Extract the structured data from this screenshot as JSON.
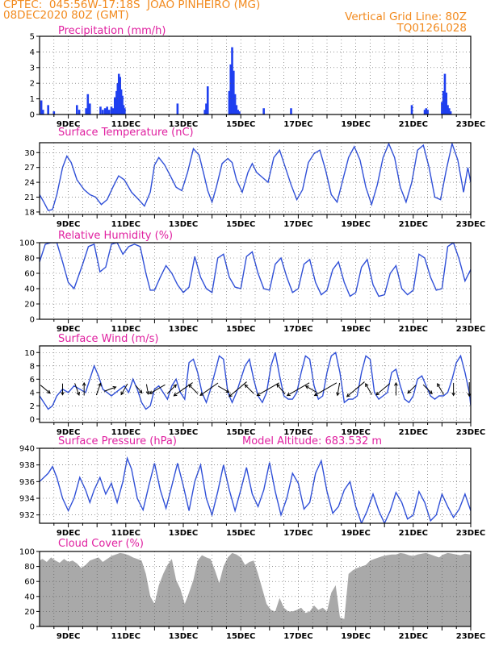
{
  "header": {
    "line1_left": "CPTEC:  045:56W-17:18S  JOAO PINHEIRO (MG)",
    "line2_left": "08DEC2020 80Z (GMT)",
    "line2_right": "Vertical Grid Line: 80Z",
    "line3_right": "TQ0126L028"
  },
  "colors": {
    "header": "#f28a1e",
    "title": "#e020a0",
    "line": "#3050d8",
    "bar": "#1f3ff0",
    "cloud": "#a9a9a9"
  },
  "chart_data": [
    {
      "type": "bar",
      "title": "Precipitation (mm/h)",
      "xlim": [
        8.0,
        23.0
      ],
      "ylim": [
        0,
        5
      ],
      "yticks": [
        0,
        1,
        2,
        3,
        4,
        5
      ],
      "xticks": [
        9,
        11,
        13,
        15,
        17,
        19,
        21,
        23
      ],
      "xticklabels": [
        "9DEC",
        "11DEC",
        "13DEC",
        "15DEC",
        "17DEC",
        "19DEC",
        "21DEC",
        "23DEC"
      ],
      "grid": true,
      "x": [
        8.06,
        8.12,
        8.3,
        8.5,
        9.3,
        9.38,
        9.62,
        9.68,
        9.75,
        10.12,
        10.2,
        10.28,
        10.35,
        10.42,
        10.5,
        10.56,
        10.62,
        10.68,
        10.72,
        10.76,
        10.8,
        10.84,
        10.88,
        10.92,
        10.96,
        12.8,
        13.75,
        13.8,
        13.85,
        14.6,
        14.65,
        14.7,
        14.75,
        14.8,
        14.85,
        14.9,
        14.95,
        15.8,
        16.75,
        20.95,
        21.4,
        21.45,
        21.5,
        22.0,
        22.05,
        22.1,
        22.15,
        22.2,
        22.25,
        22.3
      ],
      "values": [
        0.9,
        0.3,
        0.6,
        0.2,
        0.6,
        0.3,
        0.4,
        1.3,
        0.7,
        0.5,
        0.3,
        0.4,
        0.5,
        0.3,
        0.5,
        0.4,
        1.1,
        1.5,
        2.0,
        2.6,
        2.4,
        1.6,
        1.2,
        0.6,
        0.4,
        0.7,
        0.3,
        0.7,
        1.8,
        1.5,
        3.2,
        4.3,
        2.8,
        1.3,
        0.6,
        0.3,
        0.2,
        0.4,
        0.4,
        0.6,
        0.3,
        0.4,
        0.3,
        0.8,
        1.5,
        2.6,
        1.4,
        0.6,
        0.4,
        0.2
      ]
    },
    {
      "type": "line",
      "title": "Surface Temperature (nC)",
      "xlim": [
        8.0,
        23.0
      ],
      "ylim": [
        17.5,
        32.0
      ],
      "yticks": [
        18,
        21,
        24,
        27,
        30
      ],
      "xticks": [
        9,
        11,
        13,
        15,
        17,
        19,
        21,
        23
      ],
      "xticklabels": [
        "9DEC",
        "11DEC",
        "13DEC",
        "15DEC",
        "17DEC",
        "19DEC",
        "21DEC",
        "23DEC"
      ],
      "grid": true,
      "x": [
        8.0,
        8.15,
        8.3,
        8.45,
        8.6,
        8.8,
        8.95,
        9.1,
        9.3,
        9.55,
        9.75,
        9.95,
        10.15,
        10.35,
        10.55,
        10.75,
        10.95,
        11.2,
        11.45,
        11.65,
        11.85,
        12.0,
        12.15,
        12.35,
        12.55,
        12.75,
        12.95,
        13.15,
        13.35,
        13.55,
        13.7,
        13.85,
        14.0,
        14.15,
        14.35,
        14.55,
        14.7,
        14.85,
        15.05,
        15.25,
        15.4,
        15.55,
        15.75,
        15.95,
        16.15,
        16.35,
        16.55,
        16.75,
        16.95,
        17.15,
        17.35,
        17.55,
        17.75,
        17.95,
        18.15,
        18.35,
        18.55,
        18.75,
        18.95,
        19.15,
        19.35,
        19.55,
        19.75,
        19.95,
        20.15,
        20.35,
        20.55,
        20.75,
        20.95,
        21.15,
        21.35,
        21.55,
        21.75,
        21.95,
        22.15,
        22.35,
        22.55,
        22.75,
        22.9,
        23.0
      ],
      "y": [
        21.5,
        20.0,
        18.3,
        18.5,
        21.5,
        27.0,
        29.3,
        28.0,
        24.5,
        22.5,
        21.5,
        21.0,
        19.5,
        20.5,
        23.0,
        25.3,
        24.5,
        22.0,
        20.5,
        19.2,
        22.0,
        27.5,
        29.0,
        27.5,
        25.3,
        23.0,
        22.3,
        26.0,
        30.8,
        29.5,
        26.0,
        22.3,
        20.0,
        23.0,
        27.8,
        28.8,
        28.0,
        24.5,
        22.0,
        26.0,
        27.8,
        26.0,
        25.0,
        24.0,
        29.0,
        30.5,
        27.0,
        23.5,
        20.5,
        22.5,
        28.0,
        29.8,
        30.5,
        26.5,
        21.5,
        20.0,
        24.5,
        29.0,
        31.2,
        28.5,
        23.0,
        19.5,
        23.5,
        29.0,
        31.8,
        29.0,
        23.0,
        20.0,
        24.0,
        30.5,
        31.5,
        27.0,
        21.0,
        20.5,
        26.5,
        31.8,
        28.5,
        22.0,
        27.0,
        24.0
      ]
    },
    {
      "type": "line",
      "title": "Relative Humidity (%)",
      "xlim": [
        8.0,
        23.0
      ],
      "ylim": [
        0,
        100
      ],
      "yticks": [
        0,
        20,
        40,
        60,
        80,
        100
      ],
      "xticks": [
        9,
        11,
        13,
        15,
        17,
        19,
        21,
        23
      ],
      "xticklabels": [
        "9DEC",
        "11DEC",
        "13DEC",
        "15DEC",
        "17DEC",
        "19DEC",
        "21DEC",
        "23DEC"
      ],
      "grid": true,
      "x": [
        8.0,
        8.2,
        8.4,
        8.6,
        8.8,
        9.0,
        9.2,
        9.5,
        9.7,
        9.9,
        10.1,
        10.3,
        10.5,
        10.7,
        10.9,
        11.1,
        11.3,
        11.5,
        11.7,
        11.85,
        12.0,
        12.2,
        12.4,
        12.6,
        12.8,
        13.0,
        13.2,
        13.4,
        13.6,
        13.8,
        14.0,
        14.2,
        14.4,
        14.6,
        14.8,
        15.0,
        15.2,
        15.4,
        15.6,
        15.8,
        16.0,
        16.2,
        16.4,
        16.6,
        16.8,
        17.0,
        17.2,
        17.4,
        17.6,
        17.8,
        18.0,
        18.2,
        18.4,
        18.6,
        18.8,
        19.0,
        19.2,
        19.4,
        19.6,
        19.8,
        20.0,
        20.2,
        20.4,
        20.6,
        20.8,
        21.0,
        21.2,
        21.4,
        21.6,
        21.8,
        22.0,
        22.2,
        22.4,
        22.6,
        22.8,
        23.0
      ],
      "y": [
        75,
        98,
        100,
        100,
        75,
        48,
        40,
        72,
        95,
        98,
        62,
        68,
        98,
        100,
        85,
        95,
        98,
        95,
        60,
        38,
        38,
        55,
        70,
        60,
        45,
        35,
        42,
        82,
        55,
        40,
        35,
        80,
        85,
        55,
        42,
        40,
        82,
        88,
        60,
        40,
        38,
        72,
        80,
        55,
        35,
        40,
        72,
        78,
        48,
        32,
        38,
        65,
        75,
        48,
        30,
        35,
        68,
        78,
        45,
        30,
        32,
        60,
        70,
        40,
        32,
        38,
        85,
        80,
        55,
        38,
        40,
        95,
        100,
        78,
        50,
        65
      ]
    },
    {
      "type": "line",
      "title": "Surface Wind (m/s)",
      "xlim": [
        8.0,
        23.0
      ],
      "ylim": [
        -0.5,
        11.0
      ],
      "yticks": [
        0,
        2,
        4,
        6,
        8,
        10
      ],
      "xticks": [
        9,
        11,
        13,
        15,
        17,
        19,
        21,
        23
      ],
      "xticklabels": [
        "9DEC",
        "11DEC",
        "13DEC",
        "15DEC",
        "17DEC",
        "19DEC",
        "21DEC",
        "23DEC"
      ],
      "grid": true,
      "x": [
        8.0,
        8.15,
        8.3,
        8.45,
        8.6,
        8.8,
        9.0,
        9.2,
        9.4,
        9.6,
        9.75,
        9.9,
        10.05,
        10.2,
        10.35,
        10.5,
        10.65,
        10.8,
        10.95,
        11.1,
        11.25,
        11.4,
        11.55,
        11.7,
        11.85,
        12.0,
        12.15,
        12.3,
        12.45,
        12.6,
        12.75,
        12.9,
        13.05,
        13.2,
        13.35,
        13.5,
        13.65,
        13.8,
        13.95,
        14.1,
        14.25,
        14.4,
        14.55,
        14.7,
        14.85,
        15.0,
        15.15,
        15.3,
        15.45,
        15.6,
        15.75,
        15.9,
        16.05,
        16.2,
        16.35,
        16.5,
        16.65,
        16.8,
        16.95,
        17.1,
        17.25,
        17.4,
        17.55,
        17.7,
        17.85,
        18.0,
        18.15,
        18.3,
        18.45,
        18.6,
        18.75,
        18.9,
        19.05,
        19.2,
        19.35,
        19.5,
        19.65,
        19.8,
        19.95,
        20.1,
        20.25,
        20.4,
        20.55,
        20.7,
        20.85,
        21.0,
        21.15,
        21.3,
        21.45,
        21.6,
        21.75,
        21.9,
        22.05,
        22.2,
        22.35,
        22.5,
        22.65,
        22.8,
        22.95,
        23.0
      ],
      "y": [
        3.5,
        2.5,
        1.5,
        2.0,
        3.5,
        4.5,
        4.0,
        5.0,
        4.5,
        4.0,
        6.0,
        8.0,
        6.5,
        4.5,
        4.0,
        3.5,
        4.0,
        4.5,
        5.0,
        4.0,
        6.0,
        4.5,
        2.5,
        1.5,
        2.0,
        4.5,
        5.0,
        4.0,
        3.0,
        5.0,
        6.0,
        4.0,
        3.0,
        8.5,
        9.0,
        7.0,
        4.0,
        2.5,
        4.5,
        7.0,
        9.5,
        9.0,
        4.0,
        2.5,
        4.0,
        6.0,
        8.0,
        9.0,
        6.0,
        3.5,
        2.5,
        4.0,
        8.0,
        10.0,
        6.5,
        3.5,
        3.0,
        3.0,
        4.0,
        7.0,
        9.5,
        9.0,
        5.0,
        3.0,
        3.5,
        7.0,
        9.5,
        10.0,
        7.0,
        2.5,
        3.0,
        3.0,
        3.5,
        7.0,
        9.5,
        9.0,
        4.0,
        3.0,
        3.5,
        4.0,
        7.0,
        7.5,
        5.0,
        3.0,
        2.5,
        3.5,
        6.0,
        6.5,
        5.0,
        3.5,
        3.0,
        3.5,
        3.5,
        4.0,
        6.0,
        8.5,
        9.5,
        7.0,
        4.0,
        2.0
      ],
      "arrows_x": [
        8.2,
        8.8,
        9.3,
        9.55,
        10.05,
        10.45,
        10.95,
        11.45,
        11.75,
        12.1,
        12.6,
        13.0,
        13.35,
        13.9,
        14.4,
        14.9,
        15.3,
        15.95,
        16.4,
        17.0,
        17.45,
        17.95,
        18.4,
        19.0,
        19.45,
        19.95,
        20.4,
        20.95,
        21.5,
        21.95,
        22.4,
        22.95
      ],
      "arrows_speed": [
        3.0,
        2.5,
        3.0,
        3.0,
        3.0,
        3.0,
        3.0,
        2.0,
        2.0,
        5.0,
        3.0,
        7.0,
        3.0,
        6.5,
        3.0,
        7.0,
        3.0,
        8.0,
        3.0,
        8.0,
        3.0,
        8.0,
        3.0,
        7.0,
        3.0,
        5.0,
        3.0,
        2.5,
        3.0,
        3.0,
        3.0,
        3.5
      ],
      "arrows_dir_deg": [
        140,
        90,
        110,
        270,
        250,
        200,
        60,
        130,
        100,
        30,
        225,
        35,
        315,
        35,
        150,
        40,
        315,
        30,
        310,
        30,
        330,
        30,
        80,
        40,
        300,
        40,
        270,
        45,
        135,
        300,
        90,
        90
      ]
    },
    {
      "type": "line",
      "title": "Surface Pressure (hPa)",
      "annotation": "Model Altitude: 683.532 m",
      "xlim": [
        8.0,
        23.0
      ],
      "ylim": [
        931.0,
        940.0
      ],
      "yticks": [
        932,
        934,
        936,
        938,
        940
      ],
      "xticks": [
        9,
        11,
        13,
        15,
        17,
        19,
        21,
        23
      ],
      "xticklabels": [
        "9DEC",
        "11DEC",
        "13DEC",
        "15DEC",
        "17DEC",
        "19DEC",
        "21DEC",
        "23DEC"
      ],
      "grid": true,
      "x": [
        8.0,
        8.15,
        8.3,
        8.45,
        8.6,
        8.8,
        9.0,
        9.2,
        9.4,
        9.6,
        9.75,
        9.9,
        10.1,
        10.3,
        10.5,
        10.7,
        10.9,
        11.05,
        11.2,
        11.4,
        11.6,
        11.8,
        12.0,
        12.2,
        12.4,
        12.6,
        12.8,
        13.0,
        13.2,
        13.4,
        13.6,
        13.8,
        14.0,
        14.2,
        14.4,
        14.6,
        14.8,
        15.0,
        15.2,
        15.4,
        15.6,
        15.8,
        16.0,
        16.2,
        16.4,
        16.6,
        16.8,
        17.0,
        17.2,
        17.4,
        17.6,
        17.8,
        18.0,
        18.2,
        18.4,
        18.6,
        18.8,
        19.0,
        19.2,
        19.4,
        19.6,
        19.8,
        20.0,
        20.2,
        20.4,
        20.6,
        20.8,
        21.0,
        21.2,
        21.4,
        21.6,
        21.8,
        22.0,
        22.2,
        22.4,
        22.6,
        22.8,
        23.0
      ],
      "y": [
        936.0,
        936.5,
        937.0,
        937.8,
        936.5,
        934.0,
        932.5,
        934.0,
        936.5,
        935.0,
        933.5,
        935.0,
        936.5,
        934.5,
        935.8,
        933.5,
        936.0,
        938.8,
        937.5,
        934.0,
        932.6,
        935.5,
        938.2,
        935.0,
        932.8,
        935.5,
        938.2,
        935.5,
        932.5,
        936.0,
        938.0,
        934.0,
        932.0,
        934.8,
        938.0,
        935.0,
        932.5,
        935.0,
        937.7,
        934.5,
        933.0,
        935.0,
        938.3,
        934.8,
        932.0,
        934.0,
        937.0,
        935.8,
        932.7,
        933.5,
        937.0,
        938.5,
        934.8,
        932.2,
        933.0,
        935.0,
        936.0,
        933.0,
        931.0,
        932.5,
        934.5,
        932.5,
        931.0,
        932.5,
        934.7,
        933.5,
        931.5,
        932.0,
        934.8,
        933.5,
        931.3,
        932.0,
        934.5,
        933.0,
        931.7,
        932.7,
        934.5,
        932.5
      ]
    },
    {
      "type": "area",
      "title": "Cloud Cover (%)",
      "xlim": [
        8.0,
        23.0
      ],
      "ylim": [
        0,
        100
      ],
      "yticks": [
        0,
        20,
        40,
        60,
        80,
        100
      ],
      "xticks": [
        9,
        11,
        13,
        15,
        17,
        19,
        21,
        23
      ],
      "xticklabels": [
        "9DEC",
        "11DEC",
        "13DEC",
        "15DEC",
        "17DEC",
        "19DEC",
        "21DEC",
        "23DEC"
      ],
      "grid": true,
      "x": [
        8.0,
        8.1,
        8.25,
        8.4,
        8.55,
        8.7,
        8.85,
        9.0,
        9.15,
        9.3,
        9.45,
        9.6,
        9.75,
        9.9,
        10.05,
        10.2,
        10.35,
        10.5,
        10.65,
        10.8,
        10.95,
        11.1,
        11.25,
        11.4,
        11.55,
        11.7,
        11.85,
        12.0,
        12.15,
        12.3,
        12.45,
        12.6,
        12.75,
        12.9,
        13.05,
        13.2,
        13.35,
        13.5,
        13.65,
        13.8,
        13.95,
        14.1,
        14.25,
        14.4,
        14.55,
        14.7,
        14.85,
        15.0,
        15.15,
        15.3,
        15.45,
        15.6,
        15.75,
        15.9,
        16.05,
        16.2,
        16.35,
        16.5,
        16.65,
        16.8,
        16.95,
        17.1,
        17.25,
        17.4,
        17.55,
        17.7,
        17.85,
        18.0,
        18.15,
        18.3,
        18.45,
        18.6,
        18.75,
        18.9,
        19.05,
        19.2,
        19.35,
        19.5,
        19.65,
        19.8,
        19.95,
        20.1,
        20.25,
        20.4,
        20.55,
        20.7,
        20.85,
        21.0,
        21.15,
        21.3,
        21.45,
        21.6,
        21.75,
        21.9,
        22.05,
        22.2,
        22.35,
        22.5,
        22.65,
        22.8,
        23.0
      ],
      "y": [
        88,
        90,
        86,
        92,
        88,
        85,
        90,
        86,
        88,
        84,
        78,
        82,
        88,
        90,
        92,
        86,
        90,
        94,
        96,
        98,
        97,
        95,
        92,
        90,
        88,
        70,
        40,
        30,
        55,
        70,
        82,
        90,
        62,
        50,
        30,
        45,
        62,
        88,
        95,
        92,
        90,
        75,
        58,
        80,
        92,
        98,
        96,
        92,
        82,
        86,
        88,
        70,
        50,
        30,
        22,
        20,
        38,
        25,
        20,
        20,
        22,
        25,
        18,
        20,
        28,
        22,
        25,
        20,
        45,
        55,
        12,
        10,
        70,
        75,
        78,
        80,
        82,
        88,
        90,
        92,
        94,
        95,
        96,
        96,
        98,
        97,
        95,
        94,
        96,
        97,
        98,
        96,
        94,
        92,
        96,
        98,
        97,
        96,
        95,
        97,
        96
      ]
    }
  ]
}
